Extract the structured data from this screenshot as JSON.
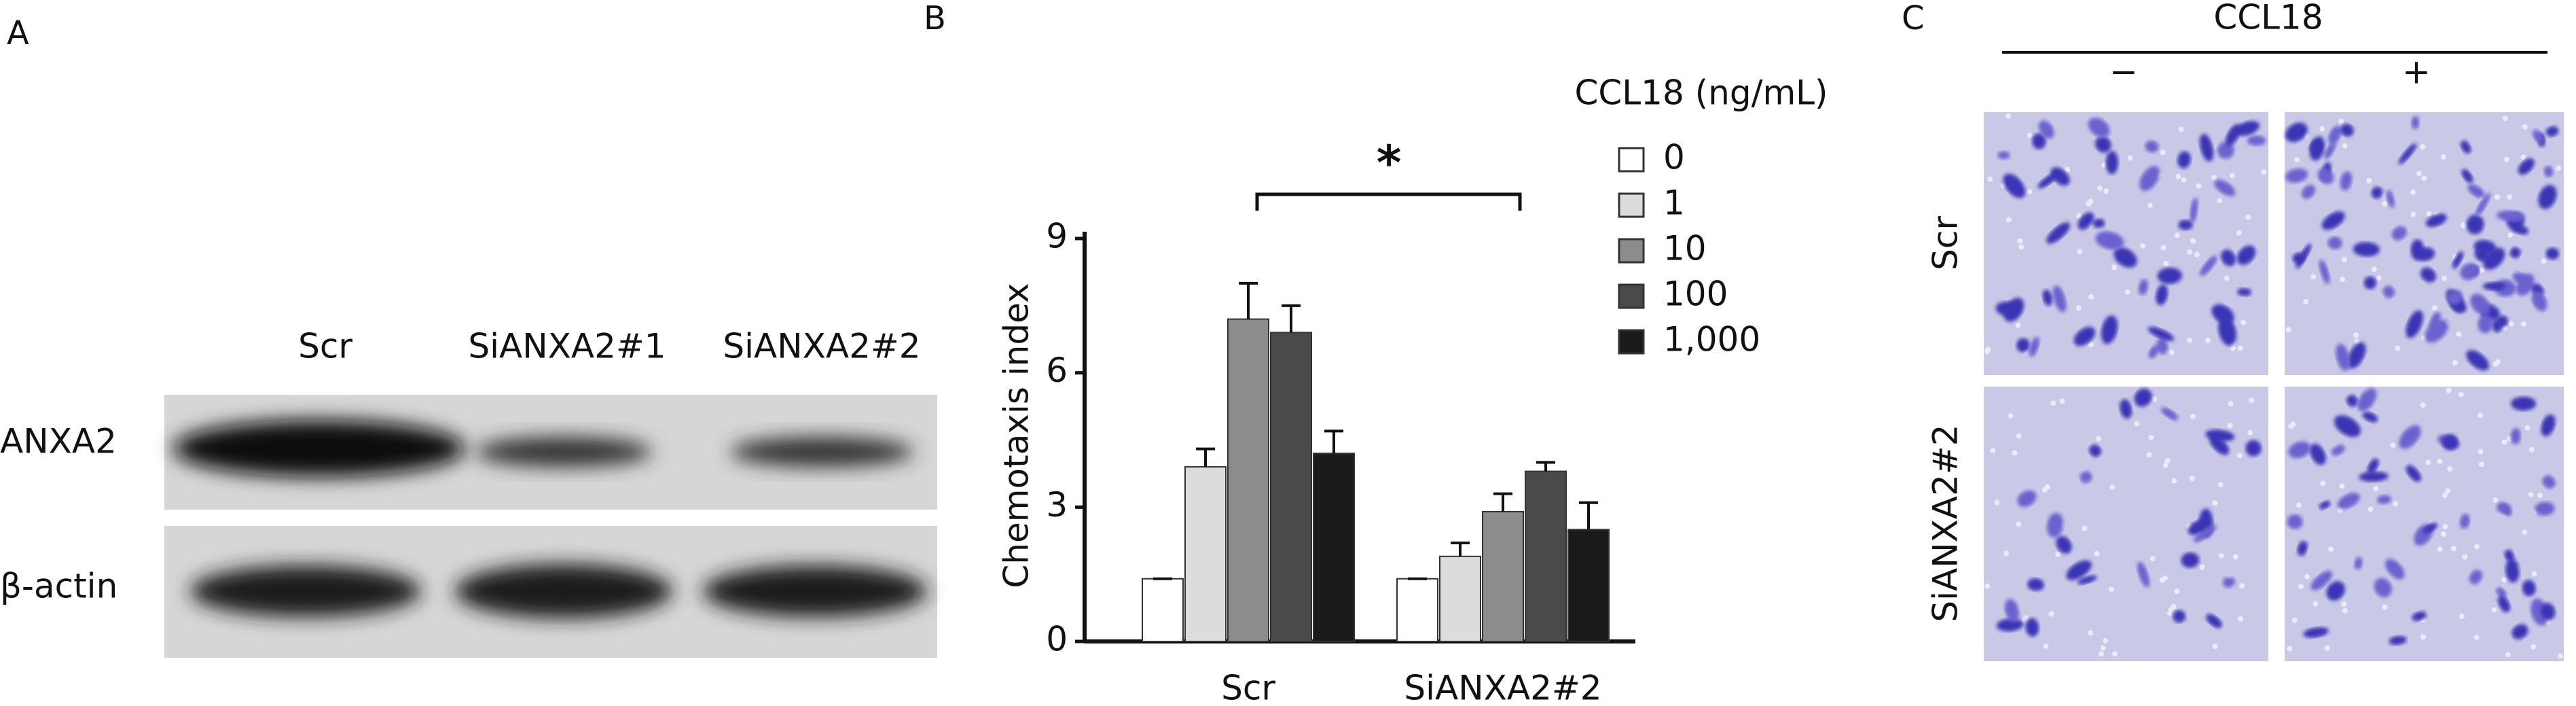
{
  "panel_a": {
    "label": "A",
    "lanes": [
      "Scr",
      "SiANXA2#1",
      "SiANXA2#2"
    ],
    "rows": [
      "ANXA2",
      "β-actin"
    ]
  },
  "chart_data": {
    "type": "bar",
    "panel_label": "B",
    "y_label": "Chemotaxis index",
    "legend_title": "CCL18 (ng/mL)",
    "annotation": "*",
    "categories": [
      "Scr",
      "SiANXA2#2"
    ],
    "series": [
      {
        "name": "0",
        "color": "#ffffff",
        "values": [
          1.4,
          1.4
        ],
        "errors": [
          0,
          0
        ]
      },
      {
        "name": "1",
        "color": "#dcdcdc",
        "values": [
          3.9,
          1.9
        ],
        "errors": [
          0.4,
          0.3
        ]
      },
      {
        "name": "10",
        "color": "#8c8c8c",
        "values": [
          7.2,
          2.9
        ],
        "errors": [
          0.8,
          0.4
        ]
      },
      {
        "name": "100",
        "color": "#4a4a4a",
        "values": [
          6.9,
          3.8
        ],
        "errors": [
          0.6,
          0.2
        ]
      },
      {
        "name": "1,000",
        "color": "#1a1a1a",
        "values": [
          4.2,
          2.5
        ],
        "errors": [
          0.5,
          0.6
        ]
      }
    ],
    "ylim": [
      0,
      9
    ],
    "yticks": [
      0,
      3,
      6,
      9
    ]
  },
  "panel_c": {
    "label": "C",
    "header": "CCL18",
    "columns": [
      "−",
      "+"
    ],
    "rows": [
      "Scr",
      "SiANXA2#2"
    ]
  }
}
